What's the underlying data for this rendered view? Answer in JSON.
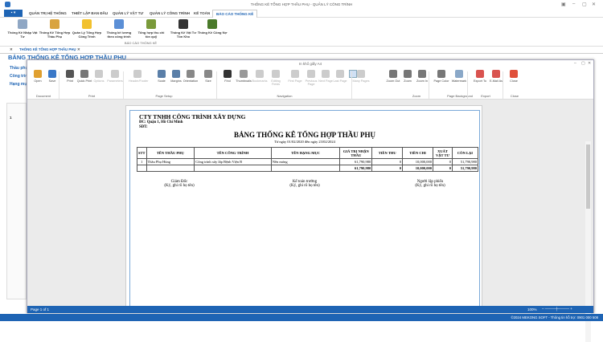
{
  "window": {
    "title": "THỐNG KÊ TỔNG HỢP THẦU PHỤ - QUẢN LÝ CÔNG TRÌNH"
  },
  "ribbon": {
    "file_label": "▪ ▾",
    "tabs": [
      "QUẢN TRỊ HỆ THỐNG",
      "THIẾT LẬP BAN ĐẦU",
      "QUẢN LÝ VẬT TƯ",
      "QUẢN LÝ CÔNG TRÌNH",
      "KẾ TOÁN",
      "BÁO CÁO THỐNG KÊ"
    ],
    "buttons": [
      {
        "label": "Thống Kê Nhập Vật Tư",
        "icon": "report-icon",
        "color": "#8fa7c4"
      },
      {
        "label": "Thống Kê Tổng Hợp Thầu Phụ",
        "icon": "sigma-icon",
        "color": "#d9a441"
      },
      {
        "label": "Quản Lý Tổng Hợp Công Trình",
        "icon": "lightbulb-icon",
        "color": "#f2c12e"
      },
      {
        "label": "Thống kê lương theo công trình",
        "icon": "book-icon",
        "color": "#5b8fd6"
      },
      {
        "label": "Tổng hợp thu chi tồn quỹ",
        "icon": "money-icon",
        "color": "#7a9a3a"
      },
      {
        "label": "Thống Kê Vật Tư Tồn Kho",
        "icon": "exit-icon",
        "color": "#333"
      },
      {
        "label": "Thống Kê Công Nợ",
        "icon": "users-icon",
        "color": "#4a7a2a"
      }
    ],
    "group_label": "BÁO CÁO THỐNG KÊ"
  },
  "doc_tab": {
    "label": "THỐNG KÊ TỔNG HỢP THẦU PHỤ"
  },
  "main": {
    "title": "BẢNG THỐNG KÊ TỔNG HỢP THẦU PHỤ",
    "labels": [
      "Thầu phụ",
      "Công trình",
      "Hạng mục"
    ],
    "grid_row": "1"
  },
  "preview": {
    "title": "In khổ giấy A4",
    "toolbar": [
      {
        "label": "Open",
        "icon": "folder-icon",
        "color": "#e0a030"
      },
      {
        "label": "Save",
        "icon": "save-icon",
        "color": "#3a78c8"
      },
      {
        "label": "Print",
        "icon": "print-icon",
        "color": "#555"
      },
      {
        "label": "Quick Print",
        "icon": "quick-print-icon",
        "color": "#777"
      },
      {
        "label": "Options",
        "icon": "options-icon",
        "color": "#ccc",
        "disabled": true
      },
      {
        "label": "Parameters",
        "icon": "parameters-icon",
        "color": "#ccc",
        "disabled": true
      },
      {
        "label": "Header/Footer",
        "icon": "header-footer-icon",
        "color": "#ccc",
        "disabled": true
      },
      {
        "label": "Scale",
        "icon": "scale-icon",
        "color": "#5a7fa8"
      },
      {
        "label": "Margins",
        "icon": "margins-icon",
        "color": "#5a7fa8"
      },
      {
        "label": "Orientation",
        "icon": "orientation-icon",
        "color": "#888"
      },
      {
        "label": "Size",
        "icon": "size-icon",
        "color": "#888"
      },
      {
        "label": "Find",
        "icon": "binoculars-icon",
        "color": "#333"
      },
      {
        "label": "Thumbnails",
        "icon": "thumbnails-icon",
        "color": "#999"
      },
      {
        "label": "Bookmarks",
        "icon": "bookmarks-icon",
        "color": "#ccc",
        "disabled": true
      },
      {
        "label": "Editing Fields",
        "icon": "editing-fields-icon",
        "color": "#ccc",
        "disabled": true
      },
      {
        "label": "First Page",
        "icon": "first-page-icon",
        "color": "#ccc",
        "disabled": true
      },
      {
        "label": "Previous Page",
        "icon": "previous-page-icon",
        "color": "#ccc",
        "disabled": true
      },
      {
        "label": "Next Page",
        "icon": "next-page-icon",
        "color": "#ccc",
        "disabled": true
      },
      {
        "label": "Last Page",
        "icon": "last-page-icon",
        "color": "#ccc",
        "disabled": true
      },
      {
        "label": "Many Pages",
        "icon": "many-pages-icon",
        "color": "#ccc",
        "disabled": true
      },
      {
        "label": "Zoom Out",
        "icon": "zoom-out-icon",
        "color": "#777"
      },
      {
        "label": "Zoom",
        "icon": "zoom-icon",
        "color": "#777"
      },
      {
        "label": "Zoom In",
        "icon": "zoom-in-icon",
        "color": "#777"
      },
      {
        "label": "Page Color",
        "icon": "page-color-icon",
        "color": "#777"
      },
      {
        "label": "Watermark",
        "icon": "watermark-icon",
        "color": "#8aa8c8"
      },
      {
        "label": "Export To",
        "icon": "export-pdf-icon",
        "color": "#d9534f"
      },
      {
        "label": "E-Mail As",
        "icon": "email-pdf-icon",
        "color": "#d9534f"
      },
      {
        "label": "Close",
        "icon": "close-circle-icon",
        "color": "#e0503a"
      }
    ],
    "groups": [
      "Document",
      "Print",
      "Page Setup",
      "Navigation",
      "Zoom",
      "Page Background",
      "Export",
      "Close"
    ],
    "status": {
      "page": "Page 1 of 1",
      "zoom": "100%"
    }
  },
  "report": {
    "company": "CTY TNHH CÔNG TRÌNH XÂY DỰNG",
    "address": "ĐC: Quận 1, Hồ Chí Minh",
    "phone": "SĐT:",
    "title": "BẢNG THỐNG KÊ TỔNG HỢP THẦU PHỤ",
    "date_range": "Từ ngày 01/02/2020 đến ngày 23/02/2024",
    "headers": [
      "STT",
      "TÊN THẦU PHỤ",
      "TÊN CÔNG TRÌNH",
      "TÊN HẠNG MỤC",
      "GIÁ TRỊ NHẬN THẦU",
      "TIỀN THU",
      "TIỀN CHI",
      "XUẤT VẬT TƯ",
      "CÒN LẠI"
    ],
    "rows": [
      [
        "1",
        "Thầu Phụ Hùng",
        "Công trình xây lắp Bệnh Viện B",
        "Nền móng",
        "61,790,980",
        "0",
        "10,000,000",
        "0",
        "51,790,980"
      ]
    ],
    "totals": [
      "61,790,980",
      "0",
      "10,000,000",
      "0",
      "51,790,980"
    ],
    "signatures": [
      {
        "role": "Giám Đốc",
        "note": "(Ký, ghi rõ họ tên)"
      },
      {
        "role": "Kế toán trưởng",
        "note": "(Ký, ghi rõ họ tên)"
      },
      {
        "role": "Người lập phiếu",
        "note": "(Ký, ghi rõ họ tên)"
      }
    ]
  },
  "footer": {
    "text": "©2024 MEKONG SOFT - Thông tin hỗ trợ: 0901 000 508"
  }
}
